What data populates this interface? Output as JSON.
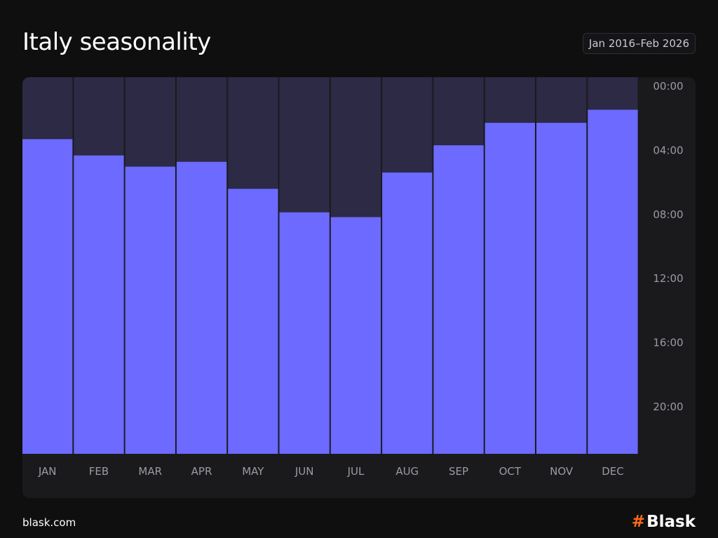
{
  "header": {
    "title": "Italy seasonality",
    "date_range": "Jan 2016–Feb 2026"
  },
  "footer": {
    "site": "blask.com",
    "brand_symbol": "#",
    "brand_name": "Blask"
  },
  "colors": {
    "bar": "#6c6aff",
    "track": "#2c2a44",
    "panel": "#1a1a1d",
    "axis_text": "#9a9aa3",
    "brand_accent": "#ff6a1a"
  },
  "chart_data": {
    "type": "bar",
    "title": "Italy seasonality",
    "categories": [
      "JAN",
      "FEB",
      "MAR",
      "APR",
      "MAY",
      "JUN",
      "JUL",
      "AUG",
      "SEP",
      "OCT",
      "NOV",
      "DEC"
    ],
    "values": [
      "03:52",
      "04:53",
      "05:35",
      "05:17",
      "06:58",
      "08:26",
      "08:44",
      "05:57",
      "04:15",
      "02:51",
      "02:51",
      "02:02"
    ],
    "y_ticks": [
      "00:00",
      "04:00",
      "08:00",
      "12:00",
      "16:00",
      "20:00"
    ],
    "ylim": [
      "00:00",
      "23:30"
    ],
    "y_axis_position": "right",
    "y_inverted": true,
    "grid": false,
    "legend": "none"
  }
}
